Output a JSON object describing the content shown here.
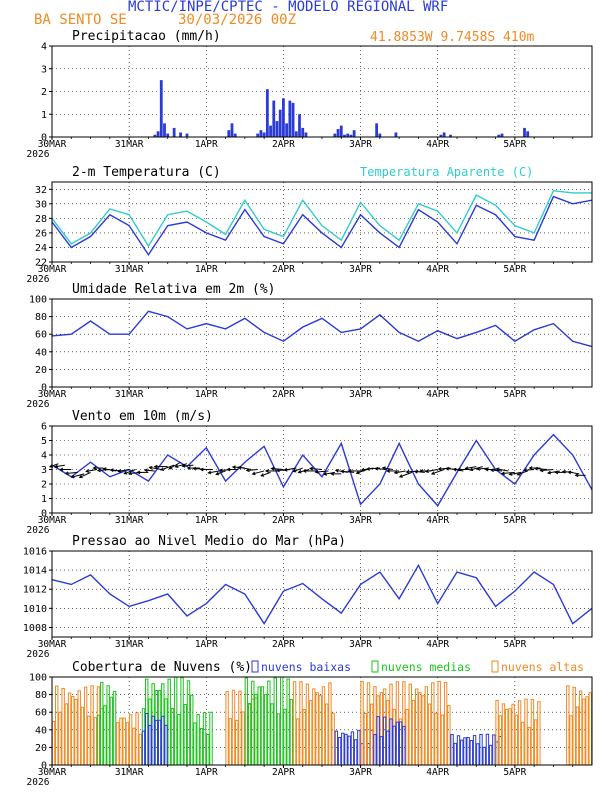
{
  "header": {
    "title": "MCTIC/INPE/CPTEC - MODELO REGIONAL WRF",
    "station": "BA SENTO SE",
    "run": "30/03/2026 00Z",
    "location": "41.8853W 9.7458S 410m"
  },
  "colors": {
    "blue": "#2b3bd6",
    "cyan": "#33cccc",
    "orange": "#f08a24",
    "green": "#1ec41e",
    "black": "#000000"
  },
  "x_axis": {
    "days": [
      "30MAR",
      "31MAR",
      "1APR",
      "2APR",
      "3APR",
      "4APR",
      "5APR"
    ],
    "year": "2026",
    "hours_total": 168
  },
  "chart_data": [
    {
      "type": "bar",
      "id": "precip",
      "title": "Precipitacao (mm/h)",
      "ylim": [
        0,
        4
      ],
      "yticks": [
        "0",
        "1",
        "2",
        "3",
        "4"
      ],
      "series": [
        {
          "name": "Precipitacao",
          "hours": [
            32,
            33,
            34,
            35,
            36,
            38,
            40,
            42,
            55,
            56,
            57,
            64,
            65,
            66,
            67,
            68,
            69,
            70,
            71,
            72,
            73,
            74,
            75,
            76,
            77,
            78,
            79,
            88,
            89,
            90,
            91,
            92,
            93,
            94,
            101,
            102,
            107,
            121,
            122,
            124,
            139,
            140,
            147,
            148
          ],
          "values": [
            0.1,
            0.25,
            2.5,
            0.6,
            0.15,
            0.4,
            0.2,
            0.15,
            0.3,
            0.6,
            0.15,
            0.15,
            0.3,
            0.2,
            2.1,
            0.5,
            1.6,
            0.7,
            1.2,
            1.7,
            0.6,
            1.6,
            1.5,
            0.25,
            1.0,
            0.4,
            0.2,
            0.15,
            0.35,
            0.5,
            0.1,
            0.15,
            0.1,
            0.3,
            0.6,
            0.15,
            0.2,
            0.1,
            0.2,
            0.1,
            0.1,
            0.15,
            0.4,
            0.25
          ]
        }
      ]
    },
    {
      "type": "line",
      "id": "temp",
      "title": "2-m Temperatura (C)",
      "legend": "Temperatura Aparente (C)",
      "ylim": [
        22,
        33
      ],
      "yticks": [
        "22",
        "24",
        "26",
        "28",
        "30",
        "32"
      ],
      "series": [
        {
          "name": "Temperatura",
          "x": [
            0,
            6,
            12,
            18,
            24,
            30,
            36,
            42,
            48,
            54,
            60,
            66,
            72,
            78,
            84,
            90,
            96,
            102,
            108,
            114,
            120,
            126,
            132,
            138,
            144,
            150,
            156,
            162,
            168
          ],
          "values": [
            27.5,
            24.0,
            25.5,
            28.5,
            27.0,
            23.0,
            27.0,
            27.5,
            26.0,
            25.0,
            29.2,
            25.5,
            24.5,
            28.5,
            26.0,
            24.0,
            28.5,
            26.0,
            24.0,
            29.2,
            27.5,
            24.5,
            29.8,
            28.5,
            25.5,
            25.0,
            31.0,
            30.0,
            30.5
          ]
        },
        {
          "name": "Temperatura Aparente",
          "x": [
            0,
            6,
            12,
            18,
            24,
            30,
            36,
            42,
            48,
            54,
            60,
            66,
            72,
            78,
            84,
            90,
            96,
            102,
            108,
            114,
            120,
            126,
            132,
            138,
            144,
            150,
            156,
            162,
            168
          ],
          "values": [
            28.0,
            24.5,
            26.0,
            29.3,
            28.5,
            24.2,
            28.5,
            29.0,
            27.5,
            25.8,
            30.5,
            26.5,
            25.5,
            30.5,
            27.0,
            25.0,
            30.2,
            27.0,
            25.0,
            30.0,
            29.0,
            26.0,
            31.2,
            29.8,
            27.0,
            26.0,
            31.8,
            31.5,
            31.5
          ]
        }
      ]
    },
    {
      "type": "line",
      "id": "umid",
      "title": "Umidade Relativa em 2m (%)",
      "ylim": [
        0,
        100
      ],
      "yticks": [
        "0",
        "20",
        "40",
        "60",
        "80",
        "100"
      ],
      "series": [
        {
          "name": "Umidade",
          "x": [
            0,
            6,
            12,
            18,
            24,
            30,
            36,
            42,
            48,
            54,
            60,
            66,
            72,
            78,
            84,
            90,
            96,
            102,
            108,
            114,
            120,
            126,
            132,
            138,
            144,
            150,
            156,
            162,
            168
          ],
          "values": [
            58,
            60,
            75,
            60,
            60,
            86,
            80,
            66,
            72,
            66,
            78,
            62,
            52,
            68,
            78,
            62,
            66,
            82,
            62,
            52,
            64,
            55,
            62,
            70,
            52,
            65,
            72,
            52,
            46
          ]
        }
      ]
    },
    {
      "type": "line",
      "id": "vento",
      "title": "Vento em 10m (m/s)",
      "ylim": [
        0,
        6
      ],
      "yticks": [
        "0",
        "1",
        "2",
        "3",
        "4",
        "5",
        "6"
      ],
      "series": [
        {
          "name": "Vento",
          "x": [
            0,
            6,
            12,
            18,
            24,
            30,
            36,
            42,
            48,
            54,
            60,
            66,
            72,
            78,
            84,
            90,
            96,
            102,
            108,
            114,
            120,
            126,
            132,
            138,
            144,
            150,
            156,
            162,
            168
          ],
          "values": [
            3.3,
            2.5,
            3.5,
            2.5,
            3.0,
            2.2,
            4.0,
            3.2,
            4.5,
            2.2,
            3.5,
            4.6,
            1.8,
            4.0,
            2.5,
            4.8,
            0.6,
            2.0,
            4.8,
            2.0,
            0.5,
            2.8,
            5.0,
            3.0,
            2.0,
            4.0,
            5.4,
            4.0,
            1.6
          ]
        }
      ],
      "arrows": {
        "hours": [
          2,
          4,
          6,
          8,
          10,
          12,
          14,
          16,
          18,
          20,
          22,
          24,
          26,
          28,
          30,
          32,
          34,
          36,
          38,
          40,
          42,
          44,
          46,
          48,
          50,
          52,
          54,
          56,
          58,
          60,
          62,
          64,
          66,
          68,
          70,
          72,
          74,
          76,
          78,
          80,
          82,
          84,
          86,
          88,
          90,
          92,
          94,
          96,
          98,
          100,
          102,
          104,
          106,
          108,
          110,
          112,
          114,
          116,
          118,
          120,
          122,
          124,
          126,
          128,
          130,
          132,
          134,
          136,
          138,
          140,
          142,
          144,
          146,
          148,
          150,
          152,
          154,
          156,
          158,
          160,
          162,
          164,
          166
        ],
        "speed": [
          3.4,
          3.3,
          3.0,
          2.8,
          2.7,
          2.8,
          3.0,
          3.1,
          3.0,
          2.9,
          2.9,
          3.0,
          3.0,
          2.8,
          2.8,
          2.9,
          3.0,
          3.2,
          3.3,
          3.5,
          3.4,
          3.3,
          3.1,
          3.0,
          3.0,
          2.9,
          2.9,
          3.0,
          3.0,
          3.1,
          3.0,
          3.0,
          2.9,
          2.8,
          2.9,
          3.0,
          3.0,
          3.1,
          3.1,
          3.0,
          2.9,
          3.0,
          2.9,
          2.8,
          2.7,
          2.8,
          2.8,
          2.9,
          3.0,
          3.1,
          3.1,
          3.0,
          3.0,
          2.9,
          2.9,
          2.8,
          2.9,
          2.8,
          2.9,
          3.0,
          3.0,
          3.1,
          3.0,
          2.9,
          3.0,
          3.2,
          3.2,
          3.1,
          3.0,
          2.9,
          2.9,
          2.8,
          2.8,
          2.9,
          3.0,
          3.1,
          3.0,
          3.0,
          2.9,
          2.8,
          2.8,
          2.7,
          2.6
        ],
        "mag": [
          0.9,
          1.0,
          1.1,
          1.2,
          1.3,
          1.2,
          1.1,
          1.0,
          1.2,
          1.3,
          1.2,
          1.1,
          1.2,
          1.3,
          1.1,
          1.0,
          1.2,
          1.3,
          1.4,
          1.3,
          1.2,
          1.1,
          1.2,
          1.3,
          1.2,
          1.1,
          1.0,
          1.2,
          1.1,
          1.2,
          1.3,
          1.1,
          1.2,
          1.0,
          1.1,
          1.2,
          1.3,
          1.2,
          1.0,
          1.1,
          1.2,
          1.2,
          1.3,
          1.1,
          1.0,
          1.2,
          1.3,
          1.2,
          1.1,
          1.2,
          1.3,
          1.1,
          1.0,
          1.2,
          1.1,
          1.3,
          1.2,
          1.0,
          1.1,
          1.2,
          1.3,
          1.2,
          1.1,
          1.0,
          1.2,
          1.1,
          1.3,
          1.2,
          1.0,
          1.1,
          1.2,
          1.3,
          1.2,
          1.1,
          1.0,
          1.1,
          1.2,
          1.3,
          1.2,
          1.1,
          1.0,
          1.1,
          1.0
        ],
        "dir": [
          200,
          190,
          180,
          185,
          195,
          205,
          190,
          180,
          185,
          170,
          175,
          190,
          200,
          185,
          180,
          175,
          170,
          180,
          200,
          210,
          195,
          185,
          180,
          175,
          180,
          190,
          200,
          185,
          180,
          175,
          170,
          185,
          195,
          200,
          180,
          175,
          185,
          190,
          200,
          195,
          180,
          175,
          185,
          190,
          180,
          170,
          175,
          180,
          200,
          190,
          185,
          175,
          170,
          180,
          190,
          200,
          185,
          175,
          180,
          190,
          200,
          185,
          175,
          170,
          180,
          190,
          195,
          185,
          180,
          175,
          170,
          185,
          190,
          200,
          185,
          180,
          175,
          185,
          190,
          180,
          175,
          170,
          180
        ]
      }
    },
    {
      "type": "line",
      "id": "press",
      "title": "Pressao ao Nivel Medio do Mar (hPa)",
      "ylim": [
        1007,
        1016
      ],
      "yticks": [
        "1008",
        "1010",
        "1012",
        "1014",
        "1016"
      ],
      "series": [
        {
          "name": "Pressao",
          "x": [
            0,
            6,
            12,
            18,
            24,
            30,
            36,
            42,
            48,
            54,
            60,
            66,
            72,
            78,
            84,
            90,
            96,
            102,
            108,
            114,
            120,
            126,
            132,
            138,
            144,
            150,
            156,
            162,
            168
          ],
          "values": [
            1013.0,
            1012.5,
            1013.5,
            1011.5,
            1010.2,
            1010.8,
            1011.5,
            1009.2,
            1010.5,
            1012.5,
            1011.5,
            1008.4,
            1011.8,
            1012.6,
            1011.0,
            1009.5,
            1012.5,
            1013.8,
            1011.0,
            1014.5,
            1010.5,
            1013.8,
            1013.2,
            1010.2,
            1011.8,
            1013.8,
            1012.5,
            1008.4,
            1010.0
          ]
        }
      ]
    },
    {
      "type": "bar",
      "id": "nuvens",
      "title": "Cobertura de Nuvens (%)",
      "legend": [
        "nuvens baixas",
        "nuvens medias",
        "nuvens altas"
      ],
      "ylim": [
        0,
        100
      ],
      "yticks": [
        "0",
        "20",
        "40",
        "60",
        "80",
        "100"
      ],
      "segments": [
        {
          "name": "nuvens altas",
          "from": 0,
          "to": 16,
          "level": 90
        },
        {
          "name": "nuvens medias",
          "from": 14,
          "to": 20,
          "level": 95
        },
        {
          "name": "nuvens altas",
          "from": 20,
          "to": 28,
          "level": 60
        },
        {
          "name": "nuvens medias",
          "from": 28,
          "to": 44,
          "level": 100
        },
        {
          "name": "nuvens baixas",
          "from": 28,
          "to": 36,
          "level": 60
        },
        {
          "name": "nuvens medias",
          "from": 44,
          "to": 50,
          "level": 60
        },
        {
          "name": "nuvens altas",
          "from": 54,
          "to": 64,
          "level": 85
        },
        {
          "name": "nuvens medias",
          "from": 60,
          "to": 75,
          "level": 100
        },
        {
          "name": "nuvens altas",
          "from": 75,
          "to": 88,
          "level": 95
        },
        {
          "name": "nuvens baixas",
          "from": 88,
          "to": 100,
          "level": 40
        },
        {
          "name": "nuvens altas",
          "from": 96,
          "to": 124,
          "level": 95
        },
        {
          "name": "nuvens baixas",
          "from": 100,
          "to": 110,
          "level": 55
        },
        {
          "name": "nuvens baixas",
          "from": 124,
          "to": 140,
          "level": 35
        },
        {
          "name": "nuvens altas",
          "from": 138,
          "to": 152,
          "level": 75
        },
        {
          "name": "nuvens altas",
          "from": 160,
          "to": 168,
          "level": 90
        }
      ]
    }
  ]
}
